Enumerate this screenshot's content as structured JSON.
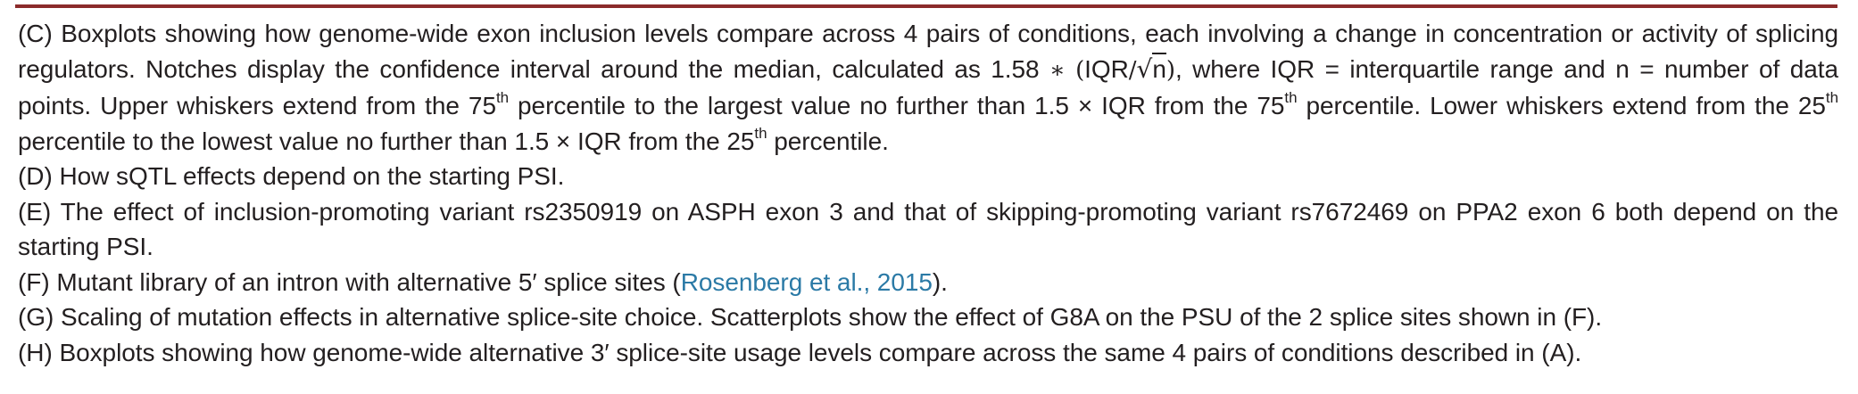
{
  "captions": {
    "c": {
      "p1": "(C) Boxplots showing how genome-wide exon inclusion levels compare across 4 pairs of conditions, each involving a change in concentration or activity of splicing regulators. Notches display the confidence interval around the median, calculated as 1.58 ",
      "op": "∗",
      "paren_open": "(",
      "iqr": "IQR",
      "slash": "/",
      "sqrt": "√",
      "n": "n",
      "paren_close": ")",
      "p2": ", where IQR = interquartile range and n = number of data points. Upper whiskers extend from the 75",
      "th1": "th",
      "p3": " percentile to the largest value no further than 1.5 × IQR from the 75",
      "th2": "th",
      "p4": " percentile. Lower whiskers extend from the 25",
      "th3": "th",
      "p5": " percentile to the lowest value no further than 1.5 × IQR from the 25",
      "th4": "th",
      "p6": " percentile."
    },
    "d": "(D) How sQTL effects depend on the starting PSI.",
    "e": "(E) The effect of inclusion-promoting variant rs2350919 on ASPH exon 3 and that of skipping-promoting variant rs7672469 on PPA2 exon 6 both depend on the starting PSI.",
    "f": {
      "before": "(F) Mutant library of an intron with alternative 5′ splice sites (",
      "citation": "Rosenberg et al., 2015",
      "after": ")."
    },
    "g": "(G) Scaling of mutation effects in alternative splice-site choice. Scatterplots show the effect of G8A on the PSU of the 2 splice sites shown in (F).",
    "h": "(H) Boxplots showing how genome-wide alternative 3′ splice-site usage levels compare across the same 4 pairs of conditions described in (A)."
  }
}
